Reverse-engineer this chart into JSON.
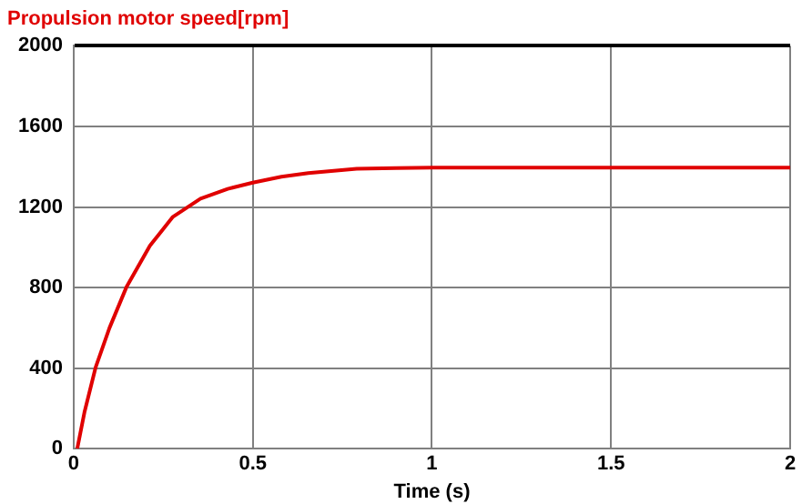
{
  "chart_data": {
    "type": "line",
    "title": "Propulsion motor speed[rpm]",
    "xlabel": "Time (s)",
    "series": [
      {
        "color": "#e00000",
        "x": [
          0.01,
          0.03,
          0.061,
          0.1,
          0.147,
          0.213,
          0.277,
          0.354,
          0.43,
          0.5,
          0.58,
          0.655,
          0.79,
          0.9,
          1,
          1.2,
          1.5,
          1.8,
          2
        ],
        "values": [
          0,
          180,
          402,
          600,
          801,
          1008,
          1151,
          1241,
          1290,
          1321,
          1350,
          1368,
          1390,
          1393,
          1395,
          1395,
          1395,
          1395,
          1395
        ]
      }
    ],
    "xlim": [
      0,
      2
    ],
    "xticks": [
      0,
      0.5,
      1,
      1.5,
      2
    ],
    "ylim": [
      0,
      2000
    ],
    "yticks": [
      0,
      400,
      800,
      1200,
      1600,
      2000
    ],
    "grid": true,
    "legend": false,
    "marker": "none",
    "line_style": "solid"
  }
}
